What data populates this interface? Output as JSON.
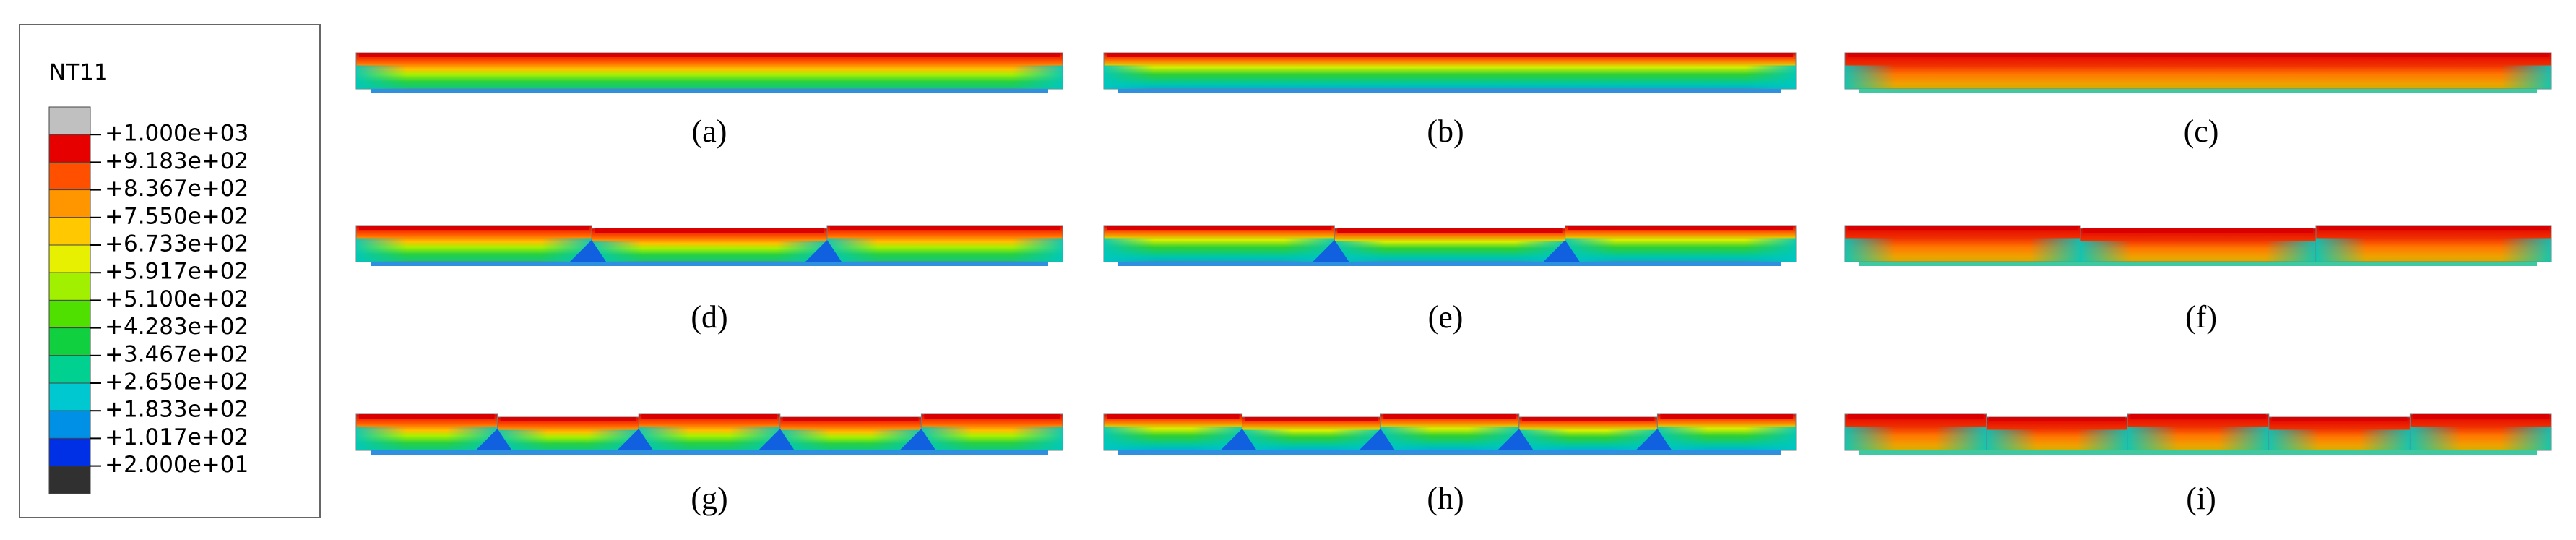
{
  "legend": {
    "title": "NT11",
    "labels": [
      "+1.000e+03",
      "+9.183e+02",
      "+8.367e+02",
      "+7.550e+02",
      "+6.733e+02",
      "+5.917e+02",
      "+5.100e+02",
      "+4.283e+02",
      "+3.467e+02",
      "+2.650e+02",
      "+1.833e+02",
      "+1.017e+02",
      "+2.000e+01"
    ]
  },
  "panels": [
    "(a)",
    "(b)",
    "(c)",
    "(d)",
    "(e)",
    "(f)",
    "(g)",
    "(h)",
    "(i)"
  ]
}
